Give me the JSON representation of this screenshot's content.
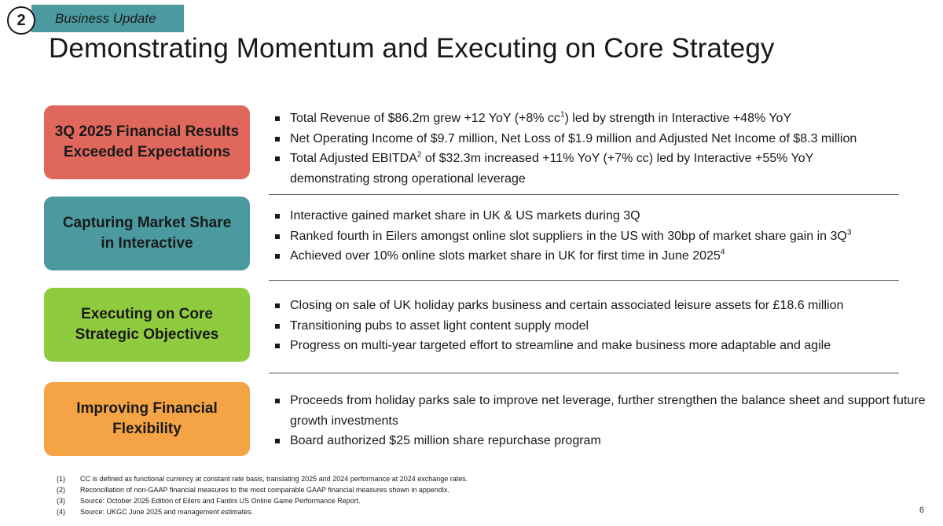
{
  "header": {
    "section_number": "2",
    "section_label": "Business Update",
    "title": "Demonstrating Momentum and Executing on Core Strategy"
  },
  "colors": {
    "tab": "#4a9aa0",
    "financial_results": "#e0675c",
    "market_share": "#4a9aa0",
    "core_objectives": "#8fcb3f",
    "financial_flexibility": "#f4a445"
  },
  "sections": [
    {
      "label": "3Q 2025 Financial Results\nExceeded Expectations",
      "bullets": [
        {
          "text": "Total Revenue of $86.2m grew +12 YoY (+8% cc",
          "sup": "1",
          "after": ") led by strength in Interactive +48% YoY"
        },
        {
          "text": "Net Operating Income of $9.7 million, Net Loss of $1.9 million and Adjusted Net Income of $8.3 million",
          "sup": "",
          "after": ""
        },
        {
          "text": "Total Adjusted EBITDA",
          "sup": "2",
          "after": " of $32.3m increased +11% YoY (+7% cc) led by Interactive +55% YoY demonstrating strong operational leverage"
        }
      ]
    },
    {
      "label": "Capturing Market Share\nin Interactive",
      "bullets": [
        {
          "text": "Interactive gained market share in UK & US markets during 3Q",
          "sup": "",
          "after": ""
        },
        {
          "text": "Ranked fourth in Eilers amongst online slot suppliers in the US with 30bp of market share gain in 3Q",
          "sup": "3",
          "after": ""
        },
        {
          "text": "Achieved over 10% online slots market share in UK for first time in June 2025",
          "sup": "4",
          "after": ""
        }
      ]
    },
    {
      "label": "Executing on Core\nStrategic Objectives",
      "bullets": [
        {
          "text": "Closing on sale of UK holiday parks business and certain associated leisure assets for £18.6 million",
          "sup": "",
          "after": ""
        },
        {
          "text": "Transitioning pubs to asset light content supply model",
          "sup": "",
          "after": ""
        },
        {
          "text": "Progress on multi-year targeted effort to streamline and make business more adaptable and agile",
          "sup": "",
          "after": ""
        }
      ]
    },
    {
      "label": "Improving Financial\nFlexibility",
      "bullets": [
        {
          "text": "Proceeds from holiday parks sale to improve net leverage, further strengthen the balance sheet and support future growth investments",
          "sup": "",
          "after": ""
        },
        {
          "text": "Board authorized $25 million share repurchase program",
          "sup": "",
          "after": ""
        }
      ]
    }
  ],
  "footnotes": [
    {
      "num": "(1)",
      "text": "CC is defined as functional currency at constant rate basis, translating 2025 and 2024 performance at 2024 exchange rates."
    },
    {
      "num": "(2)",
      "text": "Reconciliation of non-GAAP financial measures to the most comparable GAAP financial measures shown in appendix."
    },
    {
      "num": "(3)",
      "text": "Source: October 2025 Edition of Eilers and Fantini US Online Game Performance Report."
    },
    {
      "num": "(4)",
      "text": "Source: UKGC June 2025 and management estimates."
    }
  ],
  "page_number": "6"
}
